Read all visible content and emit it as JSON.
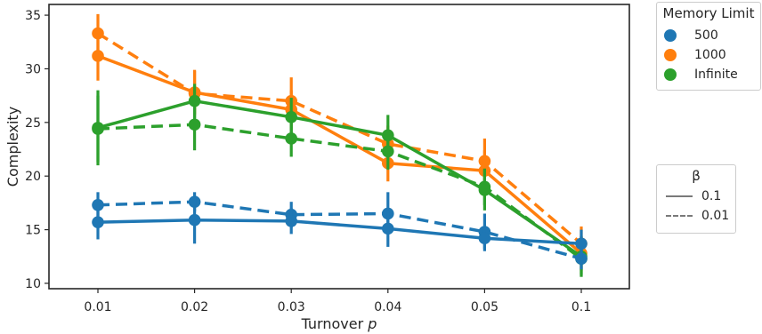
{
  "chart_data": {
    "type": "line",
    "xlabel": "Turnover",
    "xlabel_var": "p",
    "ylabel": "Complexity",
    "categories": [
      "0.01",
      "0.02",
      "0.03",
      "0.04",
      "0.05",
      "0.1"
    ],
    "ylim": [
      9.5,
      36
    ],
    "yticks": [
      10,
      15,
      20,
      25,
      30,
      35
    ],
    "grid": false,
    "colors": {
      "500": "#1f77b4",
      "1000": "#ff7f0e",
      "Infinite": "#2ca02c"
    },
    "series": [
      {
        "memory": "1000",
        "beta": "0.01",
        "values": [
          33.3,
          27.7,
          27.0,
          23.0,
          21.4,
          13.7
        ],
        "err_low": [
          31.4,
          25.8,
          24.9,
          21.3,
          19.6,
          12.1
        ],
        "err_high": [
          35.1,
          29.8,
          29.2,
          24.7,
          23.5,
          15.3
        ]
      },
      {
        "memory": "1000",
        "beta": "0.1",
        "values": [
          31.2,
          27.8,
          26.2,
          21.2,
          20.5,
          12.8
        ],
        "err_low": [
          28.9,
          25.7,
          24.3,
          19.5,
          18.6,
          11.2
        ],
        "err_high": [
          33.4,
          29.9,
          28.0,
          22.9,
          22.4,
          14.4
        ]
      },
      {
        "memory": "Infinite",
        "beta": "0.1",
        "values": [
          24.5,
          27.0,
          25.5,
          23.8,
          18.7,
          12.5
        ],
        "err_low": [
          21.0,
          25.4,
          23.6,
          21.9,
          16.8,
          10.6
        ],
        "err_high": [
          28.0,
          28.6,
          27.3,
          25.7,
          20.6,
          14.4
        ]
      },
      {
        "memory": "Infinite",
        "beta": "0.01",
        "values": [
          24.4,
          24.8,
          23.5,
          22.3,
          19.0,
          12.3
        ],
        "err_low": [
          21.3,
          22.4,
          21.8,
          20.6,
          17.3,
          10.8
        ],
        "err_high": [
          27.5,
          27.1,
          25.2,
          24.0,
          20.7,
          13.8
        ]
      },
      {
        "memory": "500",
        "beta": "0.01",
        "values": [
          17.3,
          17.6,
          16.4,
          16.5,
          14.8,
          12.3
        ],
        "err_low": [
          16.0,
          16.7,
          15.2,
          14.6,
          13.0,
          11.3
        ],
        "err_high": [
          18.5,
          18.5,
          17.6,
          18.5,
          16.5,
          13.4
        ]
      },
      {
        "memory": "500",
        "beta": "0.1",
        "values": [
          15.7,
          15.9,
          15.8,
          15.1,
          14.2,
          13.7
        ],
        "err_low": [
          14.1,
          13.7,
          14.6,
          13.4,
          13.2,
          12.3
        ],
        "err_high": [
          17.3,
          18.1,
          17.0,
          16.8,
          15.2,
          15.0
        ]
      }
    ]
  },
  "legend_memory": {
    "title": "Memory Limit",
    "items": [
      {
        "label": "500",
        "color": "#1f77b4"
      },
      {
        "label": "1000",
        "color": "#ff7f0e"
      },
      {
        "label": "Infinite",
        "color": "#2ca02c"
      }
    ]
  },
  "legend_beta": {
    "title": "β",
    "items": [
      {
        "label": "0.1",
        "style": "solid"
      },
      {
        "label": "0.01",
        "style": "dashed"
      }
    ]
  }
}
